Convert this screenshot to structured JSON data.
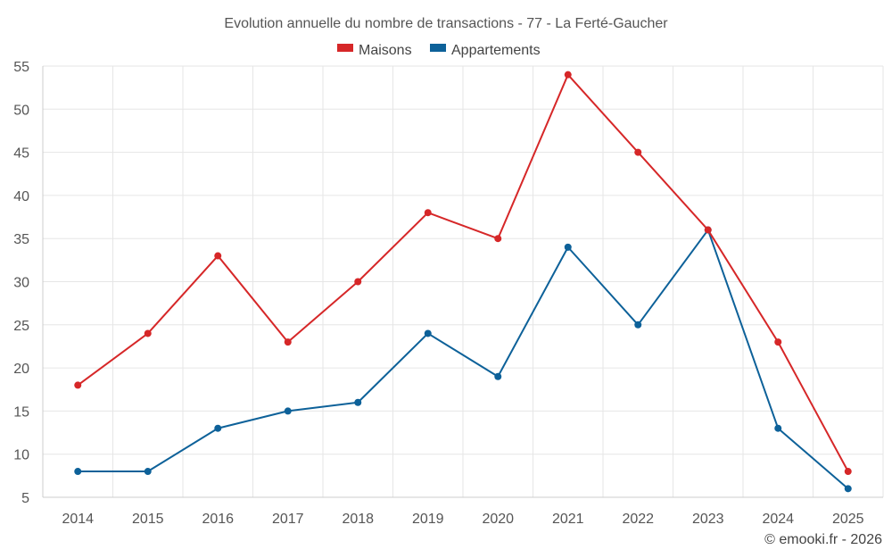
{
  "chart_data": {
    "type": "line",
    "title": "Evolution annuelle du nombre de transactions - 77 - La Ferté-Gaucher",
    "xlabel": "",
    "ylabel": "",
    "categories": [
      "2014",
      "2015",
      "2016",
      "2017",
      "2018",
      "2019",
      "2020",
      "2021",
      "2022",
      "2023",
      "2024",
      "2025"
    ],
    "ylim": [
      5,
      55
    ],
    "yticks": [
      5,
      10,
      15,
      20,
      25,
      30,
      35,
      40,
      45,
      50,
      55
    ],
    "grid": true,
    "legend_position": "top-center",
    "series": [
      {
        "name": "Maisons",
        "color": "#d62728",
        "values": [
          18,
          24,
          33,
          23,
          30,
          38,
          35,
          54,
          45,
          36,
          23,
          8
        ]
      },
      {
        "name": "Appartements",
        "color": "#0d6199",
        "values": [
          8,
          8,
          13,
          15,
          16,
          24,
          19,
          34,
          25,
          36,
          13,
          6
        ]
      }
    ]
  },
  "credit": "© emooki.fr - 2026"
}
